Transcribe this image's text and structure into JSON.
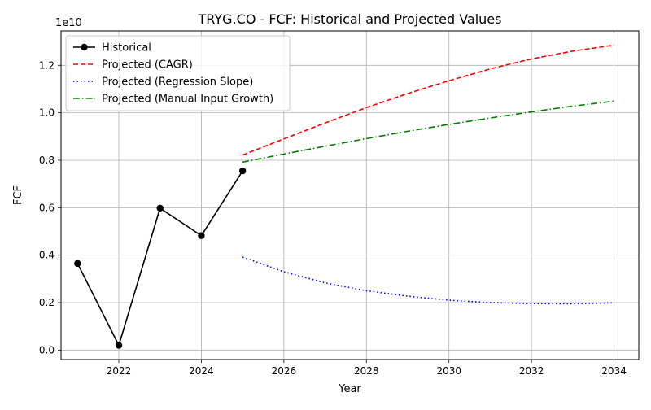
{
  "chart_data": {
    "type": "line",
    "title": "TRYG.CO - FCF: Historical and Projected Values",
    "xlabel": "Year",
    "ylabel": "FCF",
    "y_offset_label": "1e10",
    "xlim": [
      2020.6,
      2034.6
    ],
    "ylim": [
      -0.04,
      1.345
    ],
    "x_ticks": [
      2022,
      2024,
      2026,
      2028,
      2030,
      2032,
      2034
    ],
    "x_tick_labels": [
      "2022",
      "2024",
      "2026",
      "2028",
      "2030",
      "2032",
      "2034"
    ],
    "y_ticks": [
      0.0,
      0.2,
      0.4,
      0.6,
      0.8,
      1.0,
      1.2
    ],
    "y_tick_labels": [
      "0.0",
      "0.2",
      "0.4",
      "0.6",
      "0.8",
      "1.0",
      "1.2"
    ],
    "grid": true,
    "legend_position": "top-left",
    "series": [
      {
        "name": "Historical",
        "color": "#000000",
        "style": "solid",
        "marker": "circle",
        "x": [
          2021,
          2022,
          2023,
          2024,
          2025
        ],
        "values": [
          0.365,
          0.02,
          0.598,
          0.482,
          0.755
        ]
      },
      {
        "name": "Projected (CAGR)",
        "color": "#ff0000",
        "style": "dashed",
        "marker": "none",
        "x": [
          2025,
          2026,
          2027,
          2028,
          2029,
          2030,
          2031,
          2032,
          2033,
          2034
        ],
        "values": [
          0.822,
          0.89,
          0.957,
          1.022,
          1.081,
          1.135,
          1.185,
          1.227,
          1.26,
          1.285
        ]
      },
      {
        "name": "Projected (Regression Slope)",
        "color": "#0000ff",
        "style": "dotted",
        "marker": "none",
        "x": [
          2025,
          2026,
          2027,
          2028,
          2029,
          2030,
          2031,
          2032,
          2033,
          2034
        ],
        "values": [
          0.392,
          0.33,
          0.283,
          0.25,
          0.227,
          0.21,
          0.2,
          0.196,
          0.195,
          0.199
        ]
      },
      {
        "name": "Projected (Manual Input Growth)",
        "color": "#008000",
        "style": "dashdot",
        "marker": "none",
        "x": [
          2025,
          2026,
          2027,
          2028,
          2029,
          2030,
          2031,
          2032,
          2033,
          2034
        ],
        "values": [
          0.792,
          0.826,
          0.859,
          0.891,
          0.922,
          0.951,
          0.978,
          1.004,
          1.028,
          1.049
        ]
      }
    ]
  }
}
